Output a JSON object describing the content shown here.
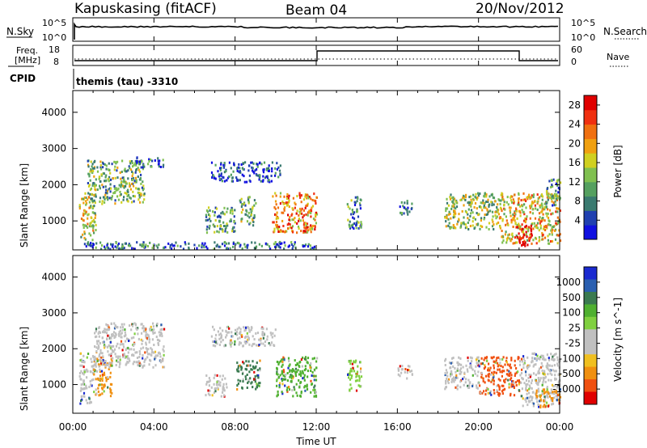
{
  "header": {
    "station": "Kapuskasing (fitACF)",
    "beam": "Beam 04",
    "date": "20/Nov/2012"
  },
  "strips": {
    "nsky_label": "N.Sky",
    "nsky_ticks": [
      "10^5",
      "10^0"
    ],
    "nsearch_label": "N.Search",
    "nsearch_ticks": [
      "10^5",
      "10^0"
    ],
    "freq_label_1": "Freq.",
    "freq_label_2": "[MHz]",
    "freq_ticks": [
      "18",
      "8"
    ],
    "nave_label": "Nave",
    "nave_ticks": [
      "60",
      "0"
    ],
    "cpid_label": "CPID",
    "cpid_value": "themis (tau) -3310"
  },
  "chart_data": [
    {
      "type": "heatmap",
      "name": "power",
      "ylabel": "Slant Range [km]",
      "yticks": [
        "1000",
        "2000",
        "3000",
        "4000"
      ],
      "ylim": [
        200,
        4600
      ],
      "xlim_hours": [
        0,
        24
      ],
      "colorbar_label": "Power [dB]",
      "colorbar_ticks": [
        "4",
        "8",
        "12",
        "16",
        "20",
        "24",
        "28"
      ],
      "colorbar_range": [
        0,
        30
      ],
      "colorscale": [
        "#1010e0",
        "#2040b0",
        "#3a7a70",
        "#55a060",
        "#80c050",
        "#d0d020",
        "#f0a010",
        "#f07010",
        "#f03010",
        "#e00000"
      ],
      "regions": [
        {
          "x": [
            0.3,
            1.1
          ],
          "y": [
            500,
            1800
          ],
          "level": 0.5
        },
        {
          "x": [
            0.7,
            3.5
          ],
          "y": [
            1500,
            2700
          ],
          "level": 0.4
        },
        {
          "x": [
            3.0,
            4.5
          ],
          "y": [
            2500,
            2800
          ],
          "level": 0.2
        },
        {
          "x": [
            6.8,
            10.2
          ],
          "y": [
            2100,
            2650
          ],
          "level": 0.15
        },
        {
          "x": [
            6.5,
            8.0
          ],
          "y": [
            700,
            1400
          ],
          "level": 0.35
        },
        {
          "x": [
            8.2,
            9.0
          ],
          "y": [
            900,
            1700
          ],
          "level": 0.4
        },
        {
          "x": [
            9.8,
            12.0
          ],
          "y": [
            700,
            1800
          ],
          "level": 0.7
        },
        {
          "x": [
            13.5,
            14.2
          ],
          "y": [
            800,
            1700
          ],
          "level": 0.3
        },
        {
          "x": [
            16.0,
            16.7
          ],
          "y": [
            1200,
            1600
          ],
          "level": 0.2
        },
        {
          "x": [
            18.3,
            21.0
          ],
          "y": [
            800,
            1800
          ],
          "level": 0.45
        },
        {
          "x": [
            21.0,
            24.0
          ],
          "y": [
            400,
            1800
          ],
          "level": 0.6
        },
        {
          "x": [
            21.8,
            22.6
          ],
          "y": [
            300,
            900
          ],
          "level": 1.0
        },
        {
          "x": [
            23.3,
            24.0
          ],
          "y": [
            1400,
            2200
          ],
          "level": 0.3
        },
        {
          "x": [
            0.5,
            12.0
          ],
          "y": [
            250,
            450
          ],
          "level": 0.2
        }
      ]
    },
    {
      "type": "heatmap",
      "name": "velocity",
      "ylabel": "Slant Range [km]",
      "yticks": [
        "1000",
        "2000",
        "3000",
        "4000"
      ],
      "ylim": [
        200,
        4600
      ],
      "xlabel": "Time UT",
      "xticks": [
        "00:00",
        "04:00",
        "08:00",
        "12:00",
        "16:00",
        "20:00",
        "00:00"
      ],
      "xlim_hours": [
        0,
        24
      ],
      "colorbar_label": "Velocity [m s^-1]",
      "colorbar_ticks": [
        "1000",
        "500",
        "100",
        "25",
        "-25",
        "-100",
        "-500",
        "-1000"
      ],
      "colorscale": [
        "#1a2ad0",
        "#2a5fb0",
        "#3a7a50",
        "#4fb030",
        "#80d040",
        "#c0c0c0",
        "#c0c0c0",
        "#f0c020",
        "#f09010",
        "#f05010",
        "#e00000"
      ],
      "regions": [
        {
          "x": [
            0.3,
            1.0
          ],
          "y": [
            500,
            1900
          ],
          "color": "#c0c0c0"
        },
        {
          "x": [
            1.0,
            1.9
          ],
          "y": [
            700,
            1800
          ],
          "color": "#f09010"
        },
        {
          "x": [
            1.0,
            4.5
          ],
          "y": [
            1500,
            2750
          ],
          "color": "#c0c0c0"
        },
        {
          "x": [
            6.8,
            10.0
          ],
          "y": [
            2100,
            2650
          ],
          "color": "#c0c0c0"
        },
        {
          "x": [
            6.5,
            7.6
          ],
          "y": [
            700,
            1300
          ],
          "color": "#c0c0c0"
        },
        {
          "x": [
            8.0,
            9.2
          ],
          "y": [
            900,
            1700
          ],
          "color": "#3a7a50"
        },
        {
          "x": [
            10.0,
            12.0
          ],
          "y": [
            700,
            1800
          ],
          "color": "#4fb030"
        },
        {
          "x": [
            13.5,
            14.2
          ],
          "y": [
            800,
            1700
          ],
          "color": "#80d040"
        },
        {
          "x": [
            16.0,
            16.7
          ],
          "y": [
            1200,
            1600
          ],
          "color": "#c0c0c0"
        },
        {
          "x": [
            18.3,
            20.0
          ],
          "y": [
            900,
            1800
          ],
          "color": "#c0c0c0"
        },
        {
          "x": [
            20.0,
            22.0
          ],
          "y": [
            700,
            1800
          ],
          "color": "#f05010"
        },
        {
          "x": [
            22.0,
            24.0
          ],
          "y": [
            400,
            1900
          ],
          "color": "#c0c0c0"
        },
        {
          "x": [
            22.8,
            24.0
          ],
          "y": [
            400,
            900
          ],
          "color": "#f09010"
        }
      ]
    }
  ]
}
